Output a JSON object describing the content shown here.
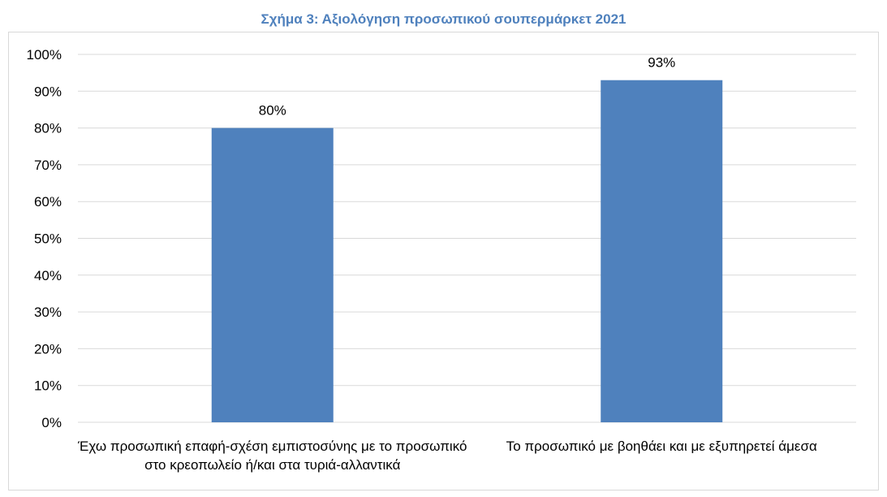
{
  "chart_data": {
    "type": "bar",
    "title": "Σχήμα 3: Αξιολόγηση προσωπικού σουπερμάρκετ 2021",
    "categories": [
      "Έχω προσωπική επαφή-σχέση εμπιστοσύνης με το προσωπικό στο κρεοπωλείο ή/και στα τυριά-αλλαντικά",
      "Το προσωπικό με βοηθάει και με εξυπηρετεί άμεσα"
    ],
    "values": [
      80,
      93
    ],
    "data_labels": [
      "80%",
      "93%"
    ],
    "ylim": [
      0,
      100
    ],
    "yticks": [
      0,
      10,
      20,
      30,
      40,
      50,
      60,
      70,
      80,
      90,
      100
    ],
    "ytick_labels": [
      "0%",
      "10%",
      "20%",
      "30%",
      "40%",
      "50%",
      "60%",
      "70%",
      "80%",
      "90%",
      "100%"
    ],
    "xlabel": "",
    "ylabel": "",
    "grid": true,
    "legend": "none",
    "colors": {
      "bar": "#4f81bd",
      "title": "#4f81bd",
      "grid": "#d9d9d9"
    }
  }
}
